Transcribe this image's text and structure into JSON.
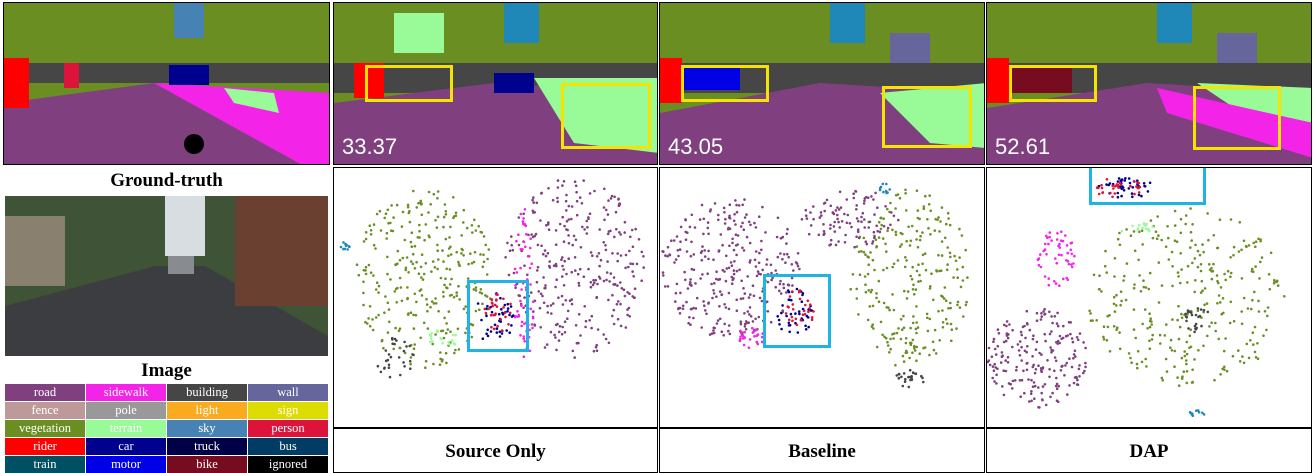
{
  "panels": {
    "gt_label": "Ground-truth",
    "image_label": "Image",
    "method_labels": [
      "Source Only",
      "Baseline",
      "DAP"
    ],
    "scores": [
      "33.37",
      "43.05",
      "52.61"
    ]
  },
  "legend": [
    {
      "name": "road",
      "color": "#804080"
    },
    {
      "name": "sidewalk",
      "color": "#f423e8"
    },
    {
      "name": "building",
      "color": "#464646"
    },
    {
      "name": "wall",
      "color": "#66669c"
    },
    {
      "name": "fence",
      "color": "#be9999"
    },
    {
      "name": "pole",
      "color": "#999999"
    },
    {
      "name": "light",
      "color": "#faaa1e"
    },
    {
      "name": "sign",
      "color": "#dcdc00"
    },
    {
      "name": "vegetation",
      "color": "#6b8e23"
    },
    {
      "name": "terrain",
      "color": "#98fb98"
    },
    {
      "name": "sky",
      "color": "#4682b4"
    },
    {
      "name": "person",
      "color": "#dc143c"
    },
    {
      "name": "rider",
      "color": "#ff0000"
    },
    {
      "name": "car",
      "color": "#00008e"
    },
    {
      "name": "truck",
      "color": "#000046"
    },
    {
      "name": "bus",
      "color": "#003c64"
    },
    {
      "name": "train",
      "color": "#005064"
    },
    {
      "name": "motor",
      "color": "#0000e6"
    },
    {
      "name": "bike",
      "color": "#770b20"
    },
    {
      "name": "ignored",
      "color": "#000000"
    }
  ]
}
